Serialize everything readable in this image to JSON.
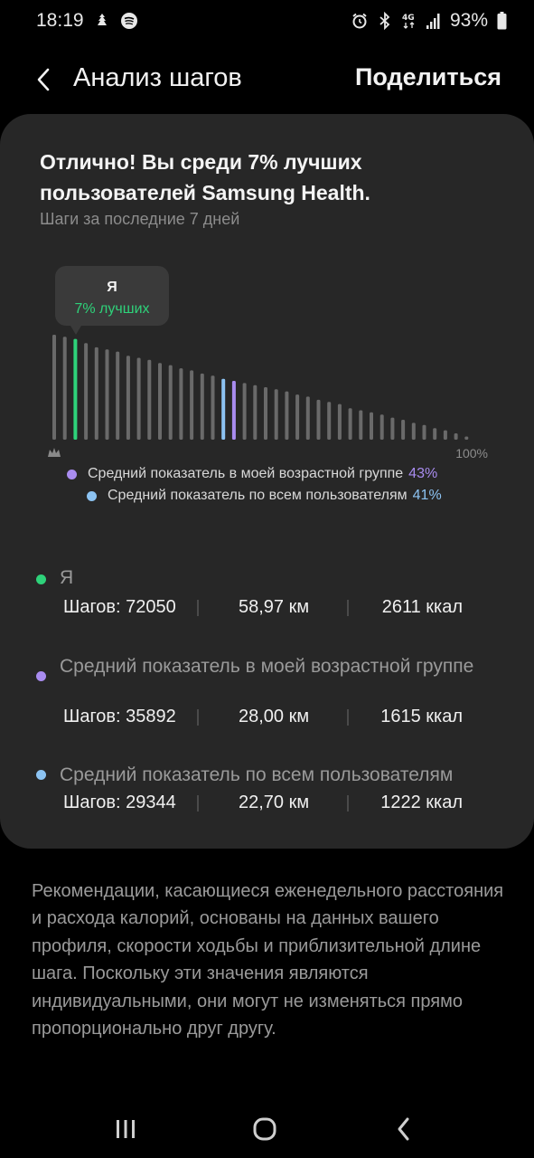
{
  "status_bar": {
    "time": "18:19",
    "battery": "93%",
    "icons": [
      "notification-icon",
      "spotify-icon",
      "alarm-icon",
      "bluetooth-icon",
      "4g-icon",
      "signal-icon",
      "battery-icon"
    ],
    "network_label": "4G"
  },
  "header": {
    "title": "Анализ шагов",
    "share_label": "Поделиться"
  },
  "card": {
    "headline": "Отлично! Вы среди 7% лучших пользователей Samsung Health.",
    "subtitle": "Шаги за последние 7 дней",
    "tooltip": {
      "title": "Я",
      "value": "7% лучших"
    },
    "axis_end_label": "100%",
    "legend": [
      {
        "label": "Средний показатель в моей возрастной группе",
        "pct": "43%",
        "color": "#a98cf0"
      },
      {
        "label": "Средний показатель по всем пользователям",
        "pct": "41%",
        "color": "#8cc3f2"
      }
    ]
  },
  "chart_data": {
    "type": "bar",
    "bar_count": 40,
    "relative_heights_percent": [
      100,
      98,
      96,
      92,
      88,
      86,
      84,
      80,
      78,
      76,
      73,
      71,
      68,
      66,
      63,
      61,
      58,
      56,
      54,
      52,
      50,
      48,
      46,
      43,
      41,
      38,
      36,
      34,
      30,
      28,
      26,
      24,
      21,
      19,
      16,
      14,
      11,
      9,
      6,
      3
    ],
    "highlights": [
      {
        "name": "Я",
        "percentile": 7,
        "bar_index": 2,
        "color": "#2ed27a"
      },
      {
        "name": "Средний показатель в моей возрастной группе",
        "percentile": 43,
        "bar_index": 17,
        "color": "#a98cf0"
      },
      {
        "name": "Средний показатель по всем пользователям",
        "percentile": 41,
        "bar_index": 16,
        "color": "#8cc3f2"
      }
    ],
    "default_color": "#6a6a6a",
    "x_end_label": "100%",
    "x_start_icon": "crown-icon"
  },
  "stats": [
    {
      "name": "Я",
      "steps": "Шагов: 72050",
      "distance": "58,97 км",
      "kcal": "2611 ккал",
      "color": "#2ed27a"
    },
    {
      "name": "Средний показатель в моей возрастной группе",
      "steps": "Шагов: 35892",
      "distance": "28,00 км",
      "kcal": "1615 ккал",
      "color": "#a98cf0"
    },
    {
      "name": "Средний показатель по всем пользователям",
      "steps": "Шагов: 29344",
      "distance": "22,70 км",
      "kcal": "1222 ккал",
      "color": "#8cc3f2"
    }
  ],
  "footnote": "Рекомендации, касающиеся еженедельного расстояния и расхода калорий, основаны на данных вашего профиля, скорости ходьбы и приблизительной длине шага. Поскольку эти значения являются индивидуальными, они могут не изменяться прямо пропорционально друг другу.",
  "navbar": {
    "icons": [
      "recent-apps-icon",
      "home-icon",
      "back-icon"
    ]
  }
}
